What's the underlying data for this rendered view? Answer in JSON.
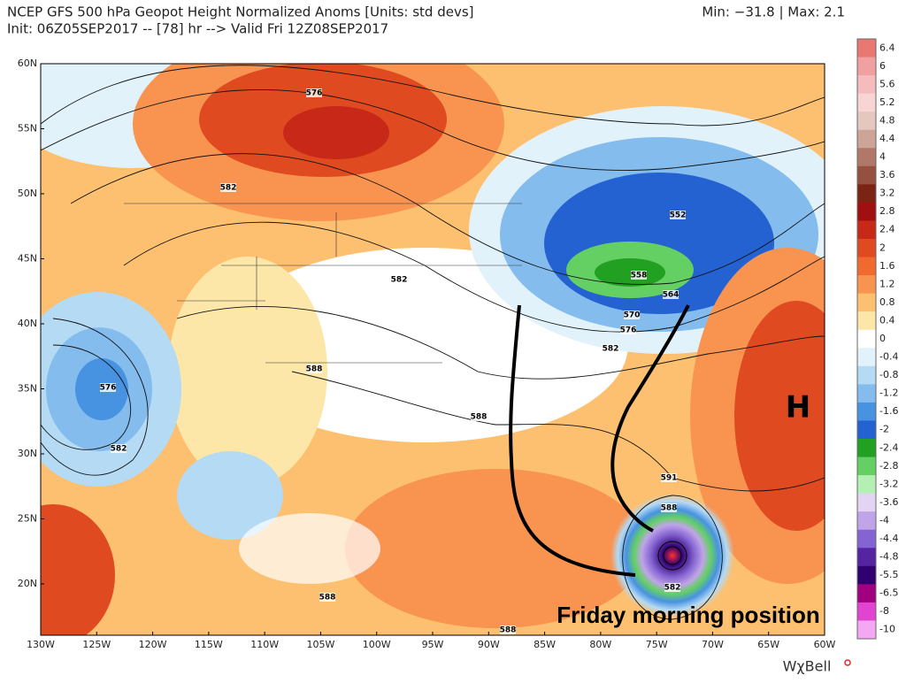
{
  "header": {
    "title": "NCEP GFS 500 hPa Geopot Height Normalized Anoms [Units: std devs]",
    "init": "Init: 06Z05SEP2017 -- [78] hr --> Valid Fri 12Z08SEP2017",
    "minmax": "Min: −31.8 | Max: 2.1"
  },
  "lat_labels": [
    "60N",
    "55N",
    "50N",
    "45N",
    "40N",
    "35N",
    "30N",
    "25N",
    "20N"
  ],
  "lon_labels": [
    "130W",
    "125W",
    "120W",
    "115W",
    "110W",
    "105W",
    "100W",
    "95W",
    "90W",
    "85W",
    "80W",
    "75W",
    "70W",
    "65W",
    "60W"
  ],
  "contour_labels": [
    "576",
    "582",
    "552",
    "558",
    "564",
    "570",
    "576",
    "582",
    "582",
    "588",
    "588",
    "576",
    "582",
    "591",
    "588",
    "582",
    "588",
    "588"
  ],
  "annotations": {
    "high": "H",
    "note": "Friday morning position"
  },
  "colorbar": [
    {
      "label": "6.4",
      "color": "#e87870"
    },
    {
      "label": "6",
      "color": "#f0a0a0"
    },
    {
      "label": "5.6",
      "color": "#f4bcbc"
    },
    {
      "label": "5.2",
      "color": "#f8d4d4"
    },
    {
      "label": "4.8",
      "color": "#e4c8c0"
    },
    {
      "label": "4.4",
      "color": "#cca498"
    },
    {
      "label": "4",
      "color": "#b07868"
    },
    {
      "label": "3.6",
      "color": "#965040"
    },
    {
      "label": "3.2",
      "color": "#7c2414"
    },
    {
      "label": "2.8",
      "color": "#a01010"
    },
    {
      "label": "2.4",
      "color": "#c82818"
    },
    {
      "label": "2",
      "color": "#e04a20"
    },
    {
      "label": "1.6",
      "color": "#f06a30"
    },
    {
      "label": "1.2",
      "color": "#f89450"
    },
    {
      "label": "0.8",
      "color": "#fcc070"
    },
    {
      "label": "0.4",
      "color": "#fce6a8"
    },
    {
      "label": "0",
      "color": "#ffffff"
    },
    {
      "label": "-0.4",
      "color": "#e2f2fb"
    },
    {
      "label": "-0.8",
      "color": "#b4daf4"
    },
    {
      "label": "-1.2",
      "color": "#84bcee"
    },
    {
      "label": "-1.6",
      "color": "#4892e2"
    },
    {
      "label": "-2",
      "color": "#2462d2"
    },
    {
      "label": "-2.4",
      "color": "#22a022"
    },
    {
      "label": "-2.8",
      "color": "#64d064"
    },
    {
      "label": "-3.2",
      "color": "#b4f0b4"
    },
    {
      "label": "-3.6",
      "color": "#e2d4f2"
    },
    {
      "label": "-4",
      "color": "#c0a4e8"
    },
    {
      "label": "-4.4",
      "color": "#8464d2"
    },
    {
      "label": "-4.8",
      "color": "#5424a2"
    },
    {
      "label": "-5.5",
      "color": "#300070"
    },
    {
      "label": "-6.5",
      "color": "#a00080"
    },
    {
      "label": "-8",
      "color": "#e044d0"
    },
    {
      "label": "-10",
      "color": "#f4a8f4"
    }
  ],
  "logo": "WχBell"
}
